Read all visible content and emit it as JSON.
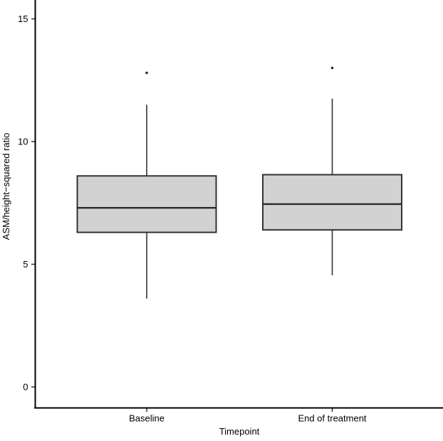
{
  "figure": {
    "background": "#ffffff"
  },
  "chart_data": {
    "type": "boxplot",
    "title": "",
    "xlabel": "Timepoint",
    "ylabel": "ASM/height−squared ratio",
    "categories": [
      "Baseline",
      "End of treatment"
    ],
    "y_ticks": [
      0,
      5,
      10,
      15
    ],
    "ylim": [
      -0.85,
      15.8
    ],
    "grid": false,
    "legend": "none",
    "series": [
      {
        "name": "Baseline",
        "whisker_low": 3.6,
        "q1": 6.3,
        "median": 7.3,
        "q3": 8.6,
        "whisker_high": 11.5,
        "outliers": [
          12.8
        ]
      },
      {
        "name": "End of treatment",
        "whisker_low": 4.55,
        "q1": 6.4,
        "median": 7.45,
        "q3": 8.65,
        "whisker_high": 11.75,
        "outliers": [
          13.0
        ]
      }
    ],
    "colors": {
      "box_fill": "#d2d2d2",
      "box_stroke": "#333333",
      "whisker": "#333333",
      "median": "#2a2a2a",
      "outlier": "#2a2a2a",
      "axis": "#000000",
      "tick": "#333333",
      "text": "#000000"
    }
  }
}
